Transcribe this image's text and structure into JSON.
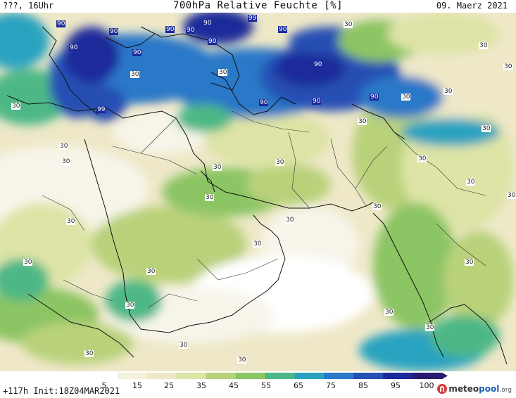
{
  "header": {
    "left": "???, 16Uhr",
    "title": "700hPa Relative Feuchte [%]",
    "date": "09. Maerz 2021"
  },
  "footer": {
    "run_info": "+117h Init:18Z04MAR2021",
    "logo_main": "meteo",
    "logo_accent": "pool",
    "logo_suffix": ".org"
  },
  "legend": {
    "ticks": [
      "5",
      "15",
      "25",
      "35",
      "45",
      "55",
      "65",
      "75",
      "85",
      "95",
      "100"
    ],
    "colors": [
      "#ffffff",
      "#f4f1e0",
      "#eee8c8",
      "#dde4a6",
      "#b9d27a",
      "#8cc564",
      "#4db886",
      "#2aa3c0",
      "#2a78c8",
      "#2650b4",
      "#1a2a9a",
      "#281870"
    ]
  },
  "map": {
    "contour_labels": [
      {
        "text": "90"
      },
      {
        "text": "90"
      },
      {
        "text": "90"
      },
      {
        "text": "90"
      },
      {
        "text": "99"
      },
      {
        "text": "90"
      },
      {
        "text": "90"
      },
      {
        "text": "90"
      },
      {
        "text": "90"
      },
      {
        "text": "30"
      },
      {
        "text": "30"
      },
      {
        "text": "30"
      },
      {
        "text": "90"
      },
      {
        "text": "90"
      },
      {
        "text": "30"
      },
      {
        "text": "99"
      },
      {
        "text": "30"
      },
      {
        "text": "30"
      },
      {
        "text": "30"
      },
      {
        "text": "90"
      },
      {
        "text": "90"
      },
      {
        "text": "90"
      },
      {
        "text": "30"
      },
      {
        "text": "30"
      },
      {
        "text": "30"
      },
      {
        "text": "30"
      },
      {
        "text": "30"
      },
      {
        "text": "30"
      },
      {
        "text": "30"
      },
      {
        "text": "30"
      },
      {
        "text": "30"
      },
      {
        "text": "30"
      },
      {
        "text": "30"
      },
      {
        "text": "30"
      },
      {
        "text": "30"
      },
      {
        "text": "30"
      },
      {
        "text": "30"
      },
      {
        "text": "30"
      },
      {
        "text": "30"
      },
      {
        "text": "30"
      },
      {
        "text": "30"
      },
      {
        "text": "30"
      },
      {
        "text": "30"
      },
      {
        "text": "30"
      },
      {
        "text": "30"
      },
      {
        "text": "30"
      }
    ]
  }
}
